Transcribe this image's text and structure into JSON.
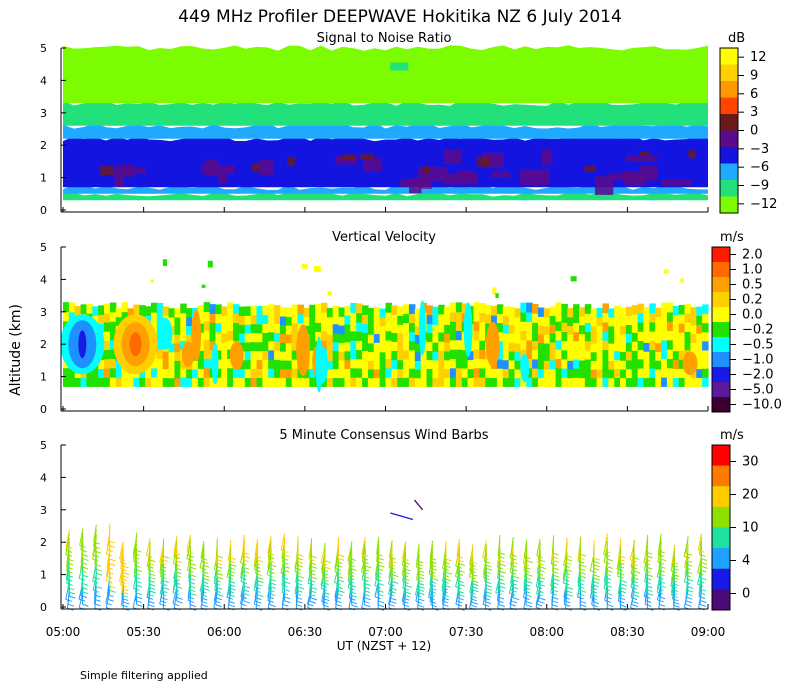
{
  "figure": {
    "title": "449 MHz Profiler DEEPWAVE Hokitika NZ  6 July 2014",
    "ylabel": "Altitude (km)",
    "xlabel": "UT  (NZST + 12)",
    "footnote": "Simple filtering applied",
    "x_ticks": [
      "05:00",
      "05:30",
      "06:00",
      "06:30",
      "07:00",
      "07:30",
      "08:00",
      "08:30",
      "09:00"
    ],
    "y_ticks": [
      "0",
      "1",
      "2",
      "3",
      "4",
      "5"
    ]
  },
  "chart_data": [
    {
      "type": "heatmap",
      "title": "Signal to Noise Ratio",
      "unit": "dB",
      "x_range_hours": [
        5,
        9
      ],
      "ylim_km": [
        0,
        5
      ],
      "colorbar_labels": [
        "12",
        "9",
        "6",
        "3",
        "0",
        "−3",
        "−6",
        "−9",
        "−12"
      ],
      "colorbar_colors": [
        "#ffff00",
        "#ffd000",
        "#ff9900",
        "#ff4500",
        "#6b1a1a",
        "#5a0a8a",
        "#1414e0",
        "#1faaff",
        "#22e07a",
        "#7cfc00"
      ],
      "layers_km": [
        {
          "from": 0.3,
          "to": 0.5,
          "db": -9
        },
        {
          "from": 0.5,
          "to": 0.7,
          "db": -6
        },
        {
          "from": 0.7,
          "to": 2.2,
          "db": -3
        },
        {
          "from": 2.2,
          "to": 2.6,
          "db": -6
        },
        {
          "from": 2.6,
          "to": 3.3,
          "db": -9
        },
        {
          "from": 3.3,
          "to": 5.0,
          "db": -12
        }
      ]
    },
    {
      "type": "heatmap",
      "title": "Vertical Velocity",
      "unit": "m/s",
      "x_range_hours": [
        5,
        9
      ],
      "ylim_km": [
        0,
        5
      ],
      "data_range_km": [
        0.7,
        3.3
      ],
      "colorbar_labels": [
        "2.0",
        "1.0",
        "0.5",
        "0.2",
        "0.0",
        "−0.2",
        "−0.5",
        "−1.0",
        "−2.0",
        "−5.0",
        "−10.0"
      ],
      "colorbar_colors": [
        "#ff1a00",
        "#ff6a00",
        "#ff9f00",
        "#ffd000",
        "#ffff00",
        "#22e000",
        "#00ffff",
        "#1e90ff",
        "#1a1ae6",
        "#5a1a9a",
        "#3a0030"
      ]
    },
    {
      "type": "scatter",
      "title": "5 Minute Consensus Wind Barbs",
      "unit": "m/s",
      "x_range_hours": [
        5,
        9
      ],
      "ylim_km": [
        0,
        5
      ],
      "data_range_km": [
        0.5,
        2.7
      ],
      "typical_speed_ms": 10,
      "colorbar_labels": [
        "30",
        "20",
        "10",
        "4",
        "0"
      ],
      "colorbar_colors": [
        "#ff0000",
        "#ff7a00",
        "#ffcc00",
        "#8ee000",
        "#1fe0a0",
        "#20a0ff",
        "#1a1ae6",
        "#4a0a7a"
      ]
    }
  ]
}
